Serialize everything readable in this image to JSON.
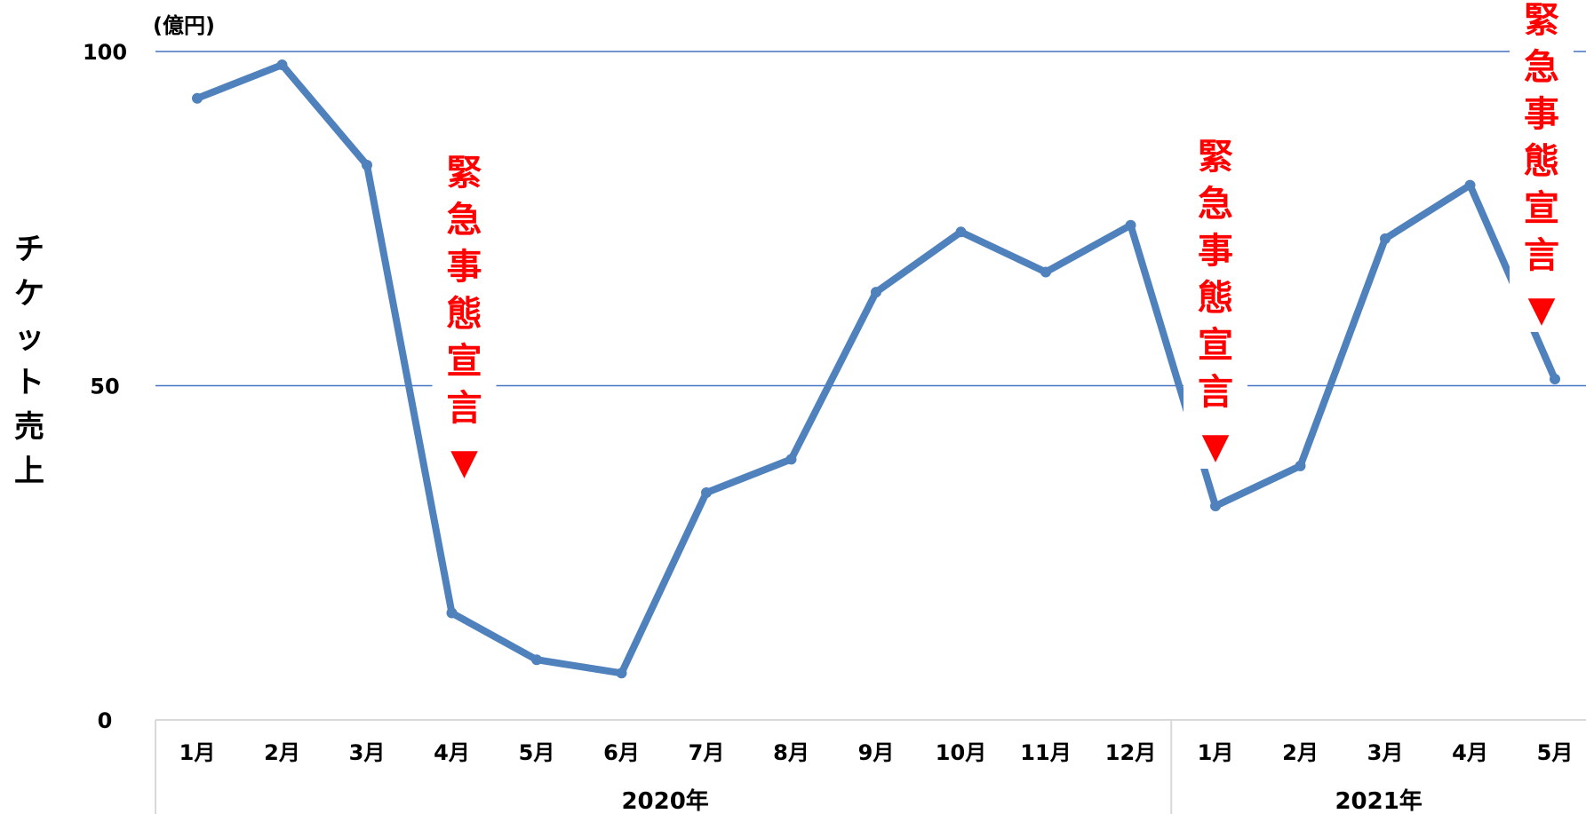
{
  "chart_data": {
    "type": "line",
    "ylabel": "チケット売上",
    "unit_label": "(億円)",
    "ylim": [
      0,
      100
    ],
    "yticks": [
      0,
      50,
      100
    ],
    "grid": true,
    "categories": [
      "1月",
      "2月",
      "3月",
      "4月",
      "5月",
      "6月",
      "7月",
      "8月",
      "9月",
      "10月",
      "11月",
      "12月",
      "1月",
      "2月",
      "3月",
      "4月",
      "5月"
    ],
    "year_groups": [
      {
        "label": "2020年",
        "count": 12
      },
      {
        "label": "2021年",
        "count": 5
      }
    ],
    "series": [
      {
        "values": [
          93,
          98,
          83,
          16,
          9,
          7,
          34,
          39,
          64,
          73,
          67,
          74,
          32,
          38,
          72,
          80,
          51
        ]
      }
    ],
    "annotations": [
      {
        "text": "緊急事態宣言",
        "marker": "▼",
        "category_index": 3
      },
      {
        "text": "緊急事態宣言",
        "marker": "▼",
        "category_index": 12
      },
      {
        "text": "緊急事態宣言",
        "marker": "▼",
        "category_index": 16
      }
    ],
    "colors": {
      "line": "#4f81bd",
      "grid": "#4472c4",
      "annotation": "#ff0000",
      "axis": "#d9d9d9"
    }
  }
}
